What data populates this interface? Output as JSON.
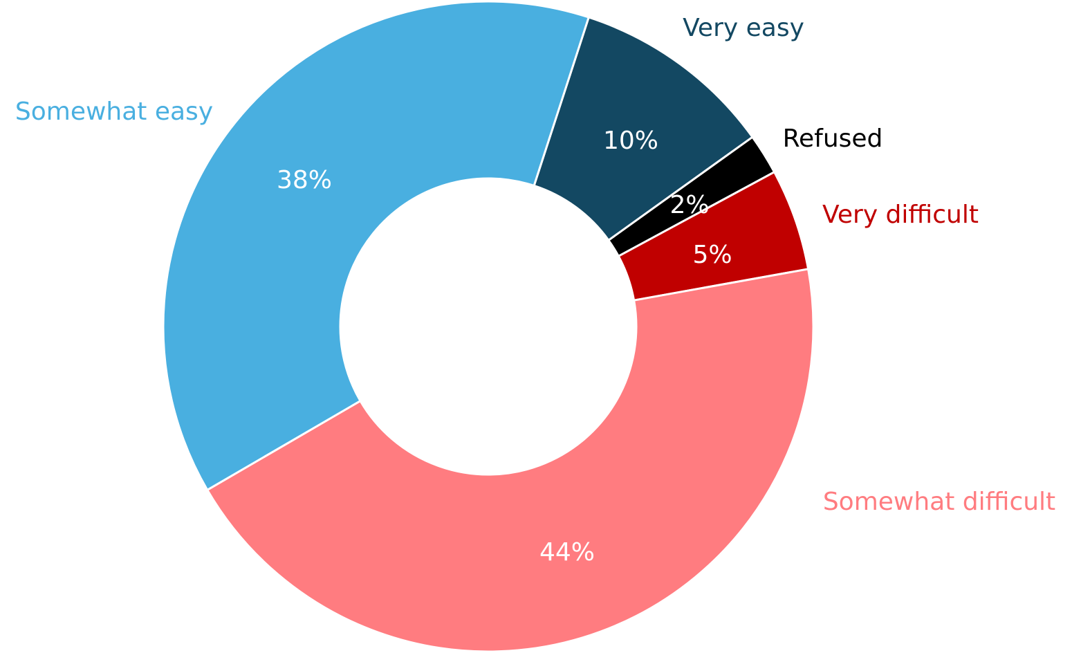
{
  "chart_data": {
    "type": "donut",
    "categories": [
      "Very easy",
      "Refused",
      "Very difficult",
      "Somewhat difficult",
      "Somewhat easy"
    ],
    "values": [
      10,
      2,
      5,
      44,
      38
    ],
    "value_labels": [
      "10%",
      "2%",
      "5%",
      "44%",
      "38%"
    ],
    "colors": [
      "#134862",
      "#000000",
      "#c00000",
      "#ff7c80",
      "#49afe0"
    ],
    "label_colors": [
      "#134862",
      "#000000",
      "#c00000",
      "#ff7c80",
      "#49afe0"
    ]
  }
}
